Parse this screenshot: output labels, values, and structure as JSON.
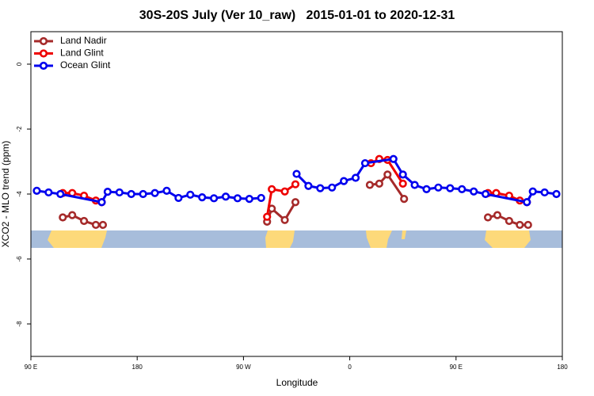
{
  "chart_data": {
    "type": "line",
    "title": "30S-20S July (Ver 10_raw)   2015-01-01 to 2020-12-31",
    "xlabel": "Longitude",
    "ylabel": "XCO2 - MLO trend (ppm)",
    "xlim": [
      90,
      540
    ],
    "ylim": [
      -9,
      1
    ],
    "xticks": [
      {
        "value": 90,
        "label": "90 E"
      },
      {
        "value": 180,
        "label": "180"
      },
      {
        "value": 270,
        "label": "90 W"
      },
      {
        "value": 360,
        "label": "0"
      },
      {
        "value": 450,
        "label": "90 E"
      },
      {
        "value": 540,
        "label": "180"
      }
    ],
    "yticks": [
      0,
      -2,
      -4,
      -6,
      -8
    ],
    "legend": "top-left",
    "series": [
      {
        "name": "Land Nadir",
        "color": "#a52a2a",
        "x": [
          117,
          125,
          135,
          145,
          151,
          null,
          290,
          294,
          305,
          314,
          null,
          377,
          385,
          392,
          406,
          null,
          477,
          485,
          495,
          504,
          511
        ],
        "values": [
          -4.72,
          -4.65,
          -4.83,
          -4.95,
          -4.95,
          null,
          -4.85,
          -4.45,
          -4.8,
          -4.25,
          null,
          -3.72,
          -3.68,
          -3.4,
          -4.15,
          null,
          -4.72,
          -4.65,
          -4.83,
          -4.95,
          -4.95
        ]
      },
      {
        "name": "Land Glint",
        "color": "#ee0000",
        "x": [
          117,
          125,
          135,
          145,
          150,
          null,
          290,
          294,
          305,
          314,
          null,
          378,
          385,
          392,
          405,
          null,
          477,
          484,
          495,
          504,
          510
        ],
        "values": [
          -3.97,
          -3.97,
          -4.05,
          -4.2,
          -4.25,
          null,
          -4.7,
          -3.85,
          -3.92,
          -3.7,
          null,
          -3.05,
          -2.92,
          -2.95,
          -3.68,
          null,
          -3.97,
          -3.97,
          -4.05,
          -4.2,
          -4.25
        ]
      },
      {
        "name": "Ocean Glint",
        "color": "#0000ee",
        "x": [
          95,
          105,
          115,
          150,
          155,
          165,
          175,
          185,
          195,
          205,
          215,
          225,
          235,
          245,
          255,
          265,
          275,
          285,
          null,
          315,
          325,
          335,
          345,
          355,
          365,
          373,
          397,
          405,
          415,
          425,
          435,
          445,
          455,
          465,
          475,
          510,
          515,
          525,
          535
        ],
        "values": [
          -3.9,
          -3.95,
          -4.0,
          -4.25,
          -3.93,
          -3.95,
          -4.0,
          -4.0,
          -3.97,
          -3.9,
          -4.12,
          -4.02,
          -4.1,
          -4.13,
          -4.08,
          -4.13,
          -4.15,
          -4.12,
          null,
          -3.38,
          -3.75,
          -3.82,
          -3.8,
          -3.6,
          -3.5,
          -3.05,
          -2.92,
          -3.4,
          -3.72,
          -3.85,
          -3.8,
          -3.82,
          -3.85,
          -3.92,
          -4.0,
          -4.25,
          -3.92,
          -3.95,
          -4.0
        ]
      }
    ]
  }
}
